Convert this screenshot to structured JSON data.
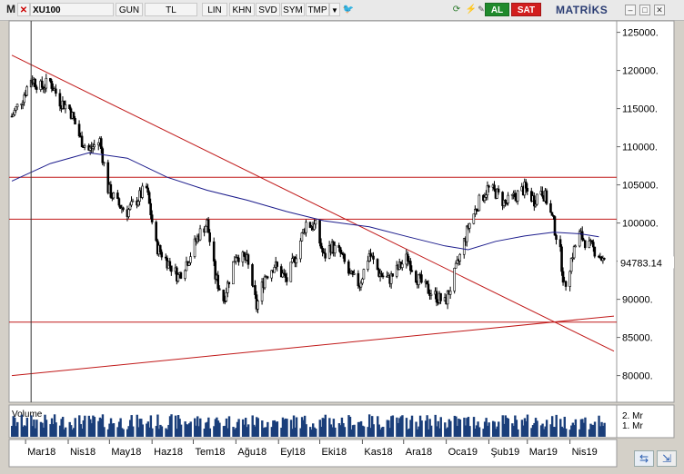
{
  "toolbar": {
    "logo": "M",
    "symbol": "XU100",
    "buttons": [
      "GUN",
      "TL",
      "LIN",
      "KHN",
      "SVD",
      "SYM",
      "TMP"
    ],
    "dropdown_arrow": "▼",
    "twitter_icon": "twitter-icon",
    "buy_label": "AL",
    "sell_label": "SAT",
    "brand": "MATRİKS",
    "colors": {
      "buy": "#1f8a2c",
      "sell": "#d21e1e",
      "brand": "#2b3d73"
    }
  },
  "chart_data": {
    "type": "candlestick",
    "symbol": "XU100",
    "x_ticks": [
      "Mar18",
      "Nis18",
      "May18",
      "Haz18",
      "Tem18",
      "Ağu18",
      "Eyl18",
      "Eki18",
      "Kas18",
      "Ara18",
      "Oca19",
      "Şub19",
      "Mar19",
      "Nis19"
    ],
    "x_tick_labels_display": [
      "Mar18",
      "Nis18",
      "May18",
      "Haz18",
      "Tem18",
      "Ağu18",
      "Eyl18",
      "Eki18",
      "Kas18",
      "Ara18",
      "Oca19",
      "Şub19",
      "Mar19",
      "Nis19"
    ],
    "y_ticks": [
      125000,
      120000,
      115000,
      110000,
      105000,
      100000,
      95000,
      90000,
      85000,
      80000
    ],
    "y_tick_labels": [
      "125000.",
      "120000.",
      "115000.",
      "110000.",
      "105000.",
      "100000.",
      "",
      "90000.",
      "85000.",
      "80000."
    ],
    "ylim": [
      76500,
      126500
    ],
    "last_price_label": "94783.14",
    "last_price": 94783.14,
    "close_path": [
      [
        "2018-02-19",
        114000
      ],
      [
        "2018-02-27",
        116500
      ],
      [
        "2018-03-05",
        119000
      ],
      [
        "2018-03-12",
        117800
      ],
      [
        "2018-03-19",
        118500
      ],
      [
        "2018-03-26",
        116000
      ],
      [
        "2018-04-02",
        115000
      ],
      [
        "2018-04-10",
        111000
      ],
      [
        "2018-04-16",
        109500
      ],
      [
        "2018-04-24",
        110800
      ],
      [
        "2018-04-30",
        104500
      ],
      [
        "2018-05-07",
        102500
      ],
      [
        "2018-05-14",
        101500
      ],
      [
        "2018-05-21",
        103000
      ],
      [
        "2018-05-25",
        104000
      ],
      [
        "2018-05-28",
        104500
      ],
      [
        "2018-06-04",
        97000
      ],
      [
        "2018-06-12",
        95000
      ],
      [
        "2018-06-20",
        93000
      ],
      [
        "2018-06-28",
        95500
      ],
      [
        "2018-07-05",
        98500
      ],
      [
        "2018-07-11",
        100000
      ],
      [
        "2018-07-17",
        93000
      ],
      [
        "2018-07-23",
        90000
      ],
      [
        "2018-08-01",
        96000
      ],
      [
        "2018-08-09",
        95000
      ],
      [
        "2018-08-13",
        92000
      ],
      [
        "2018-08-16",
        89000
      ],
      [
        "2018-08-22",
        93000
      ],
      [
        "2018-08-29",
        94500
      ],
      [
        "2018-09-07",
        92500
      ],
      [
        "2018-09-14",
        96000
      ],
      [
        "2018-09-21",
        100000
      ],
      [
        "2018-09-28",
        99500
      ],
      [
        "2018-10-04",
        95500
      ],
      [
        "2018-10-09",
        97000
      ],
      [
        "2018-10-16",
        96000
      ],
      [
        "2018-10-23",
        93000
      ],
      [
        "2018-10-30",
        92000
      ],
      [
        "2018-11-06",
        96000
      ],
      [
        "2018-11-13",
        93500
      ],
      [
        "2018-11-20",
        92500
      ],
      [
        "2018-11-27",
        94000
      ],
      [
        "2018-12-04",
        95500
      ],
      [
        "2018-12-10",
        93000
      ],
      [
        "2018-12-17",
        91500
      ],
      [
        "2018-12-24",
        90500
      ],
      [
        "2018-12-31",
        89500
      ],
      [
        "2019-01-04",
        91500
      ],
      [
        "2019-01-10",
        95000
      ],
      [
        "2019-01-17",
        99500
      ],
      [
        "2019-01-24",
        102500
      ],
      [
        "2019-01-31",
        104500
      ],
      [
        "2019-02-06",
        104000
      ],
      [
        "2019-02-13",
        102500
      ],
      [
        "2019-02-20",
        103500
      ],
      [
        "2019-02-27",
        104500
      ],
      [
        "2019-03-06",
        103000
      ],
      [
        "2019-03-11",
        104500
      ],
      [
        "2019-03-15",
        103000
      ],
      [
        "2019-03-20",
        100000
      ],
      [
        "2019-03-25",
        96000
      ],
      [
        "2019-03-28",
        91500
      ],
      [
        "2019-04-03",
        96000
      ],
      [
        "2019-04-08",
        98500
      ],
      [
        "2019-04-15",
        97000
      ],
      [
        "2019-04-22",
        96000
      ],
      [
        "2019-04-26",
        94783
      ]
    ],
    "moving_average": [
      [
        "2018-02-19",
        105500
      ],
      [
        "2018-03-19",
        107800
      ],
      [
        "2018-04-16",
        109200
      ],
      [
        "2018-05-14",
        108500
      ],
      [
        "2018-06-12",
        106000
      ],
      [
        "2018-07-11",
        104300
      ],
      [
        "2018-08-09",
        103000
      ],
      [
        "2018-09-07",
        101500
      ],
      [
        "2018-10-04",
        100300
      ],
      [
        "2018-11-06",
        99500
      ],
      [
        "2018-12-04",
        98200
      ],
      [
        "2018-12-31",
        97000
      ],
      [
        "2019-01-17",
        96500
      ],
      [
        "2019-02-06",
        97600
      ],
      [
        "2019-02-27",
        98300
      ],
      [
        "2019-03-20",
        98800
      ],
      [
        "2019-04-08",
        98600
      ],
      [
        "2019-04-22",
        98200
      ]
    ],
    "horizontal_lines": [
      106000,
      100500,
      87000
    ],
    "trend_lines": [
      {
        "name": "descending",
        "from": [
          "2018-02-19",
          122000
        ],
        "to": [
          "2019-05-03",
          83200
        ]
      },
      {
        "name": "ascending",
        "from": [
          "2018-02-19",
          80000
        ],
        "to": [
          "2019-05-03",
          87800
        ]
      }
    ],
    "cursor_line_date": "2018-03-05",
    "volume_label": "Volume",
    "volume_ticks": [
      "2. Mr",
      "1. Mr"
    ],
    "volume_axis": [
      2,
      1
    ],
    "colors": {
      "candles": "#000000",
      "moving_average": "#1c1c8c",
      "lines": "#c01818",
      "volume": "#1a3e7a",
      "cursor": "#333333"
    }
  }
}
